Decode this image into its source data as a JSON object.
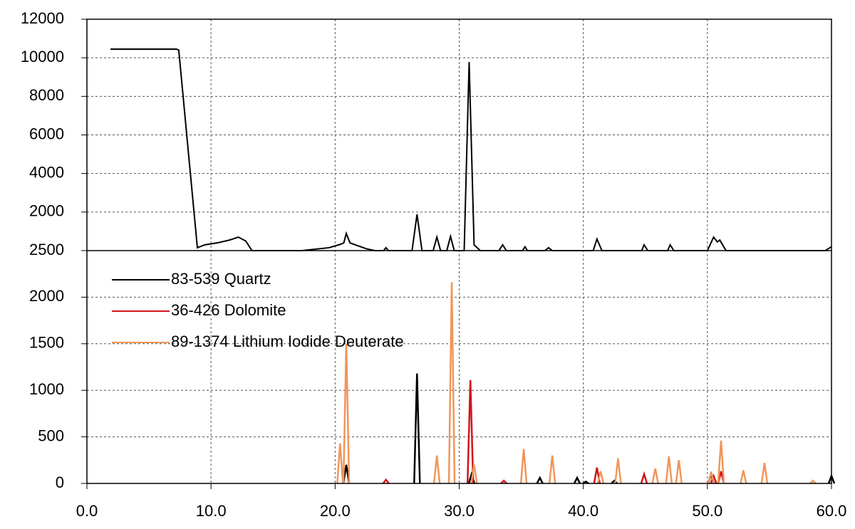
{
  "chart_data": [
    {
      "type": "line",
      "color": "#000000",
      "ylim": [
        0,
        12000
      ],
      "yticks": [
        2000,
        4000,
        6000,
        8000,
        10000,
        12000
      ],
      "grid": true,
      "x": [
        1.9,
        7.2,
        7.4,
        8.9,
        9.5,
        10.5,
        11.5,
        12.2,
        12.8,
        13.3,
        17.3,
        19.5,
        20.3,
        20.7,
        20.9,
        21.2,
        22.5,
        23.2,
        23.9,
        24.1,
        24.3,
        26.2,
        26.6,
        27.0,
        27.9,
        28.2,
        28.5,
        29.0,
        29.3,
        29.6,
        30.4,
        30.8,
        31.2,
        31.7,
        33.2,
        33.5,
        33.8,
        35.1,
        35.3,
        35.5,
        36.9,
        37.2,
        37.5,
        40.8,
        41.1,
        41.5,
        44.7,
        44.9,
        45.2,
        46.8,
        47.0,
        47.3,
        50.0,
        50.5,
        50.8,
        51.0,
        51.5,
        51.8,
        59.5,
        60.0
      ],
      "values": [
        10450,
        10450,
        10400,
        150,
        300,
        400,
        550,
        700,
        500,
        0,
        0,
        150,
        300,
        400,
        890,
        400,
        100,
        0,
        0,
        150,
        0,
        0,
        1880,
        0,
        0,
        700,
        0,
        0,
        740,
        0,
        0,
        9780,
        300,
        0,
        0,
        300,
        0,
        0,
        200,
        0,
        0,
        150,
        0,
        0,
        600,
        0,
        0,
        300,
        0,
        0,
        300,
        0,
        0,
        700,
        450,
        550,
        0,
        0,
        0,
        200
      ]
    },
    {
      "type": "stick",
      "xlim": [
        0,
        60
      ],
      "xticks": [
        {
          "value": 0,
          "label": "0.0"
        },
        {
          "value": 10,
          "label": "10.0"
        },
        {
          "value": 20,
          "label": "20.0"
        },
        {
          "value": 30,
          "label": "30.0"
        },
        {
          "value": 40,
          "label": "40.0"
        },
        {
          "value": 50,
          "label": "50.0"
        },
        {
          "value": 60,
          "label": "60.0"
        }
      ],
      "ylim": [
        0,
        2500
      ],
      "yticks": [
        0,
        500,
        1000,
        1500,
        2000,
        2500
      ],
      "grid": true,
      "series": [
        {
          "name": "83-539 Quartz",
          "color": "#000000",
          "x": [
            20.9,
            26.6,
            31.0,
            36.5,
            39.5,
            40.2,
            42.5,
            50.3,
            60.0
          ],
          "values": [
            200,
            1180,
            100,
            60,
            60,
            20,
            30,
            100,
            80
          ]
        },
        {
          "name": "36-426 Dolomite",
          "color": "#d2151c",
          "x": [
            24.1,
            30.9,
            33.6,
            41.1,
            44.9,
            50.5,
            51.1
          ],
          "values": [
            40,
            1110,
            30,
            170,
            100,
            80,
            130
          ]
        },
        {
          "name": "89-1374 Lithium Iodide Deuterate",
          "color": "#f0965a",
          "x": [
            20.4,
            20.9,
            28.2,
            29.4,
            31.2,
            35.2,
            37.5,
            41.4,
            42.8,
            45.8,
            46.9,
            47.7,
            50.3,
            51.1,
            52.9,
            54.6,
            58.5
          ],
          "values": [
            430,
            1500,
            300,
            2160,
            200,
            370,
            300,
            130,
            270,
            160,
            290,
            250,
            120,
            460,
            140,
            220,
            30
          ]
        }
      ]
    }
  ]
}
